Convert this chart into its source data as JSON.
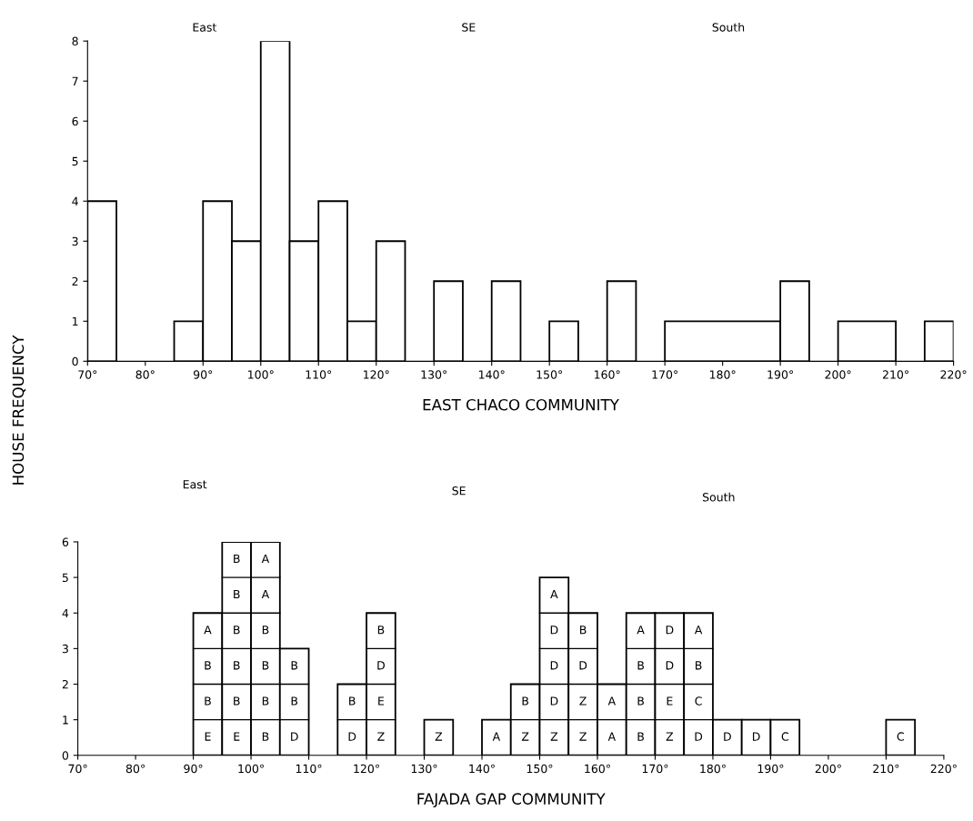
{
  "chart_data": [
    {
      "type": "histogram",
      "xlabel": "EAST CHACO COMMUNITY",
      "ylabel": "HOUSE FREQUENCY",
      "color": "#ffffff",
      "bins": [
        70,
        75,
        85,
        90,
        95,
        100,
        105,
        110,
        115,
        120,
        125,
        130,
        135,
        140,
        145,
        150,
        155,
        160,
        165,
        170,
        190,
        195,
        200,
        210,
        215,
        220
      ],
      "values": [
        4,
        0,
        1,
        4,
        3,
        8,
        3,
        4,
        1,
        3,
        0,
        2,
        0,
        2,
        0,
        1,
        0,
        2,
        0,
        1,
        2,
        0,
        1,
        0,
        1
      ],
      "xlim": [
        70,
        220
      ],
      "ylim": [
        0,
        8
      ],
      "xticks": [
        {
          "value": 70,
          "label": "70°"
        },
        {
          "value": 80,
          "label": "80°"
        },
        {
          "value": 90,
          "label": "90°"
        },
        {
          "value": 100,
          "label": "100°"
        },
        {
          "value": 110,
          "label": "110°"
        },
        {
          "value": 120,
          "label": "120°"
        },
        {
          "value": 130,
          "label": "130°"
        },
        {
          "value": 140,
          "label": "140°"
        },
        {
          "value": 150,
          "label": "150°"
        },
        {
          "value": 160,
          "label": "160°"
        },
        {
          "value": 170,
          "label": "170°"
        },
        {
          "value": 180,
          "label": "180°"
        },
        {
          "value": 190,
          "label": "190°"
        },
        {
          "value": 200,
          "label": "200°"
        },
        {
          "value": 210,
          "label": "210°"
        },
        {
          "value": 220,
          "label": "220°"
        }
      ],
      "yticks": [
        0,
        1,
        2,
        3,
        4,
        5,
        6,
        7,
        8
      ],
      "grid": false,
      "annotations": [
        "East",
        "SE",
        "South"
      ]
    },
    {
      "type": "histogram",
      "xlabel": "FAJADA GAP COMMUNITY",
      "color": "#ffffff",
      "bins": [
        70,
        75,
        80,
        85,
        90,
        95,
        100,
        105,
        110,
        115,
        120,
        125,
        130,
        135,
        140,
        145,
        150,
        155,
        160,
        165,
        170,
        175,
        180,
        185,
        190,
        195,
        200,
        205,
        210,
        215,
        220
      ],
      "values": [
        0,
        0,
        0,
        0,
        4,
        6,
        6,
        3,
        0,
        2,
        4,
        0,
        1,
        0,
        1,
        2,
        5,
        4,
        2,
        4,
        4,
        4,
        1,
        1,
        1,
        0,
        0,
        0,
        1,
        0
      ],
      "xlim": [
        70,
        220
      ],
      "ylim": [
        0,
        6
      ],
      "xticks": [
        {
          "value": 70,
          "label": "70°"
        },
        {
          "value": 80,
          "label": "80°"
        },
        {
          "value": 90,
          "label": "90°"
        },
        {
          "value": 100,
          "label": "100°"
        },
        {
          "value": 110,
          "label": "110°"
        },
        {
          "value": 120,
          "label": "120°"
        },
        {
          "value": 130,
          "label": "130°"
        },
        {
          "value": 140,
          "label": "140°"
        },
        {
          "value": 150,
          "label": "150°"
        },
        {
          "value": 160,
          "label": "160°"
        },
        {
          "value": 170,
          "label": "170°"
        },
        {
          "value": 180,
          "label": "180°"
        },
        {
          "value": 190,
          "label": "190°"
        },
        {
          "value": 200,
          "label": "200°"
        },
        {
          "value": 210,
          "label": "210°"
        },
        {
          "value": 220,
          "label": "220°"
        }
      ],
      "yticks": [
        0,
        1,
        2,
        3,
        4,
        5,
        6
      ],
      "grid": false,
      "annotations": [
        "East",
        "SE",
        "South",
        "E",
        "B",
        "B",
        "A",
        "E",
        "B",
        "B",
        "B",
        "B",
        "B",
        "B",
        "B",
        "B",
        "B",
        "A",
        "A",
        "D",
        "B",
        "B",
        "D",
        "B",
        "Z",
        "E",
        "D",
        "B",
        "Z",
        "A",
        "Z",
        "B",
        "Z",
        "D",
        "D",
        "D",
        "A",
        "Z",
        "Z",
        "D",
        "B",
        "A",
        "A",
        "B",
        "B",
        "B",
        "A",
        "Z",
        "E",
        "D",
        "D",
        "D",
        "C",
        "B",
        "A",
        "D",
        "D",
        "C",
        "C"
      ]
    }
  ]
}
